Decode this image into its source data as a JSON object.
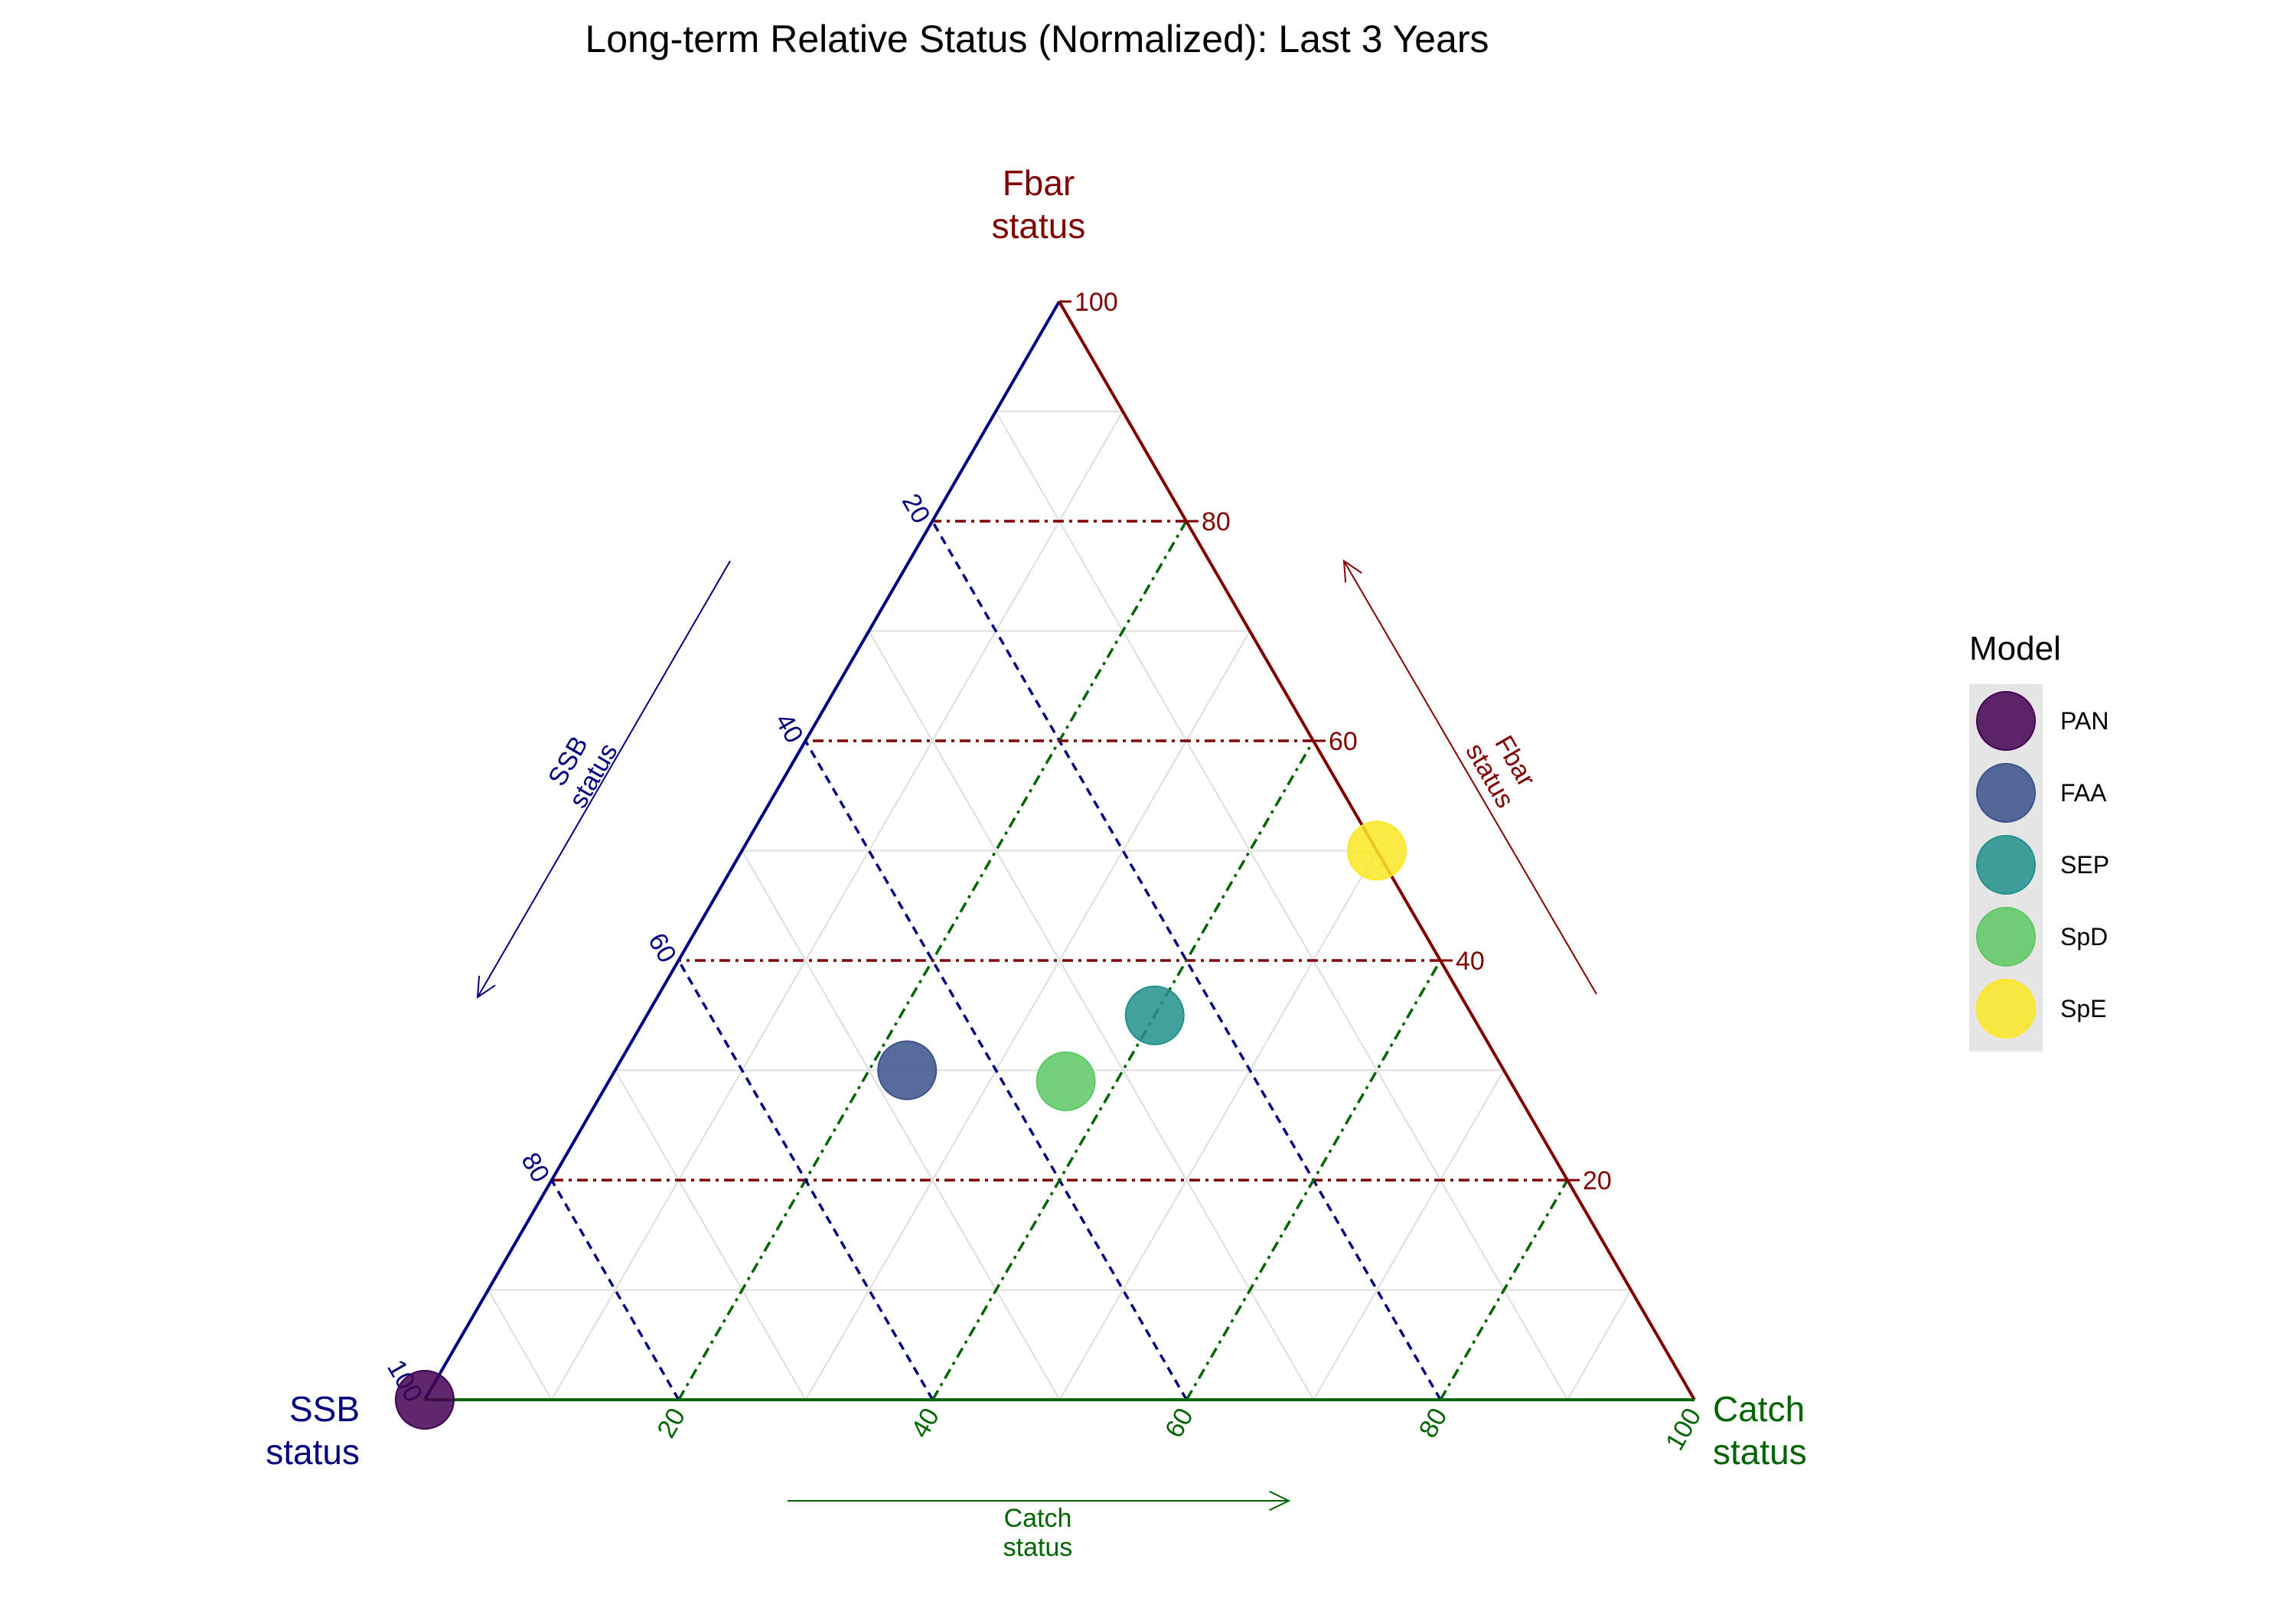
{
  "chart_data": {
    "type": "scatter",
    "subtype": "ternary",
    "title": "Long-term Relative Status (Normalized): Last 3 Years",
    "axes": {
      "ssb": {
        "label": [
          "SSB",
          "status"
        ],
        "color": "#000080"
      },
      "fbar": {
        "label": [
          "Fbar",
          "status"
        ],
        "color": "#800000"
      },
      "catch": {
        "label": [
          "Catch",
          "status"
        ],
        "color": "#006400"
      }
    },
    "ticks": [
      "20",
      "40",
      "60",
      "80",
      "100"
    ],
    "tick_values": [
      20,
      40,
      60,
      80,
      100
    ],
    "range": [
      0,
      100
    ],
    "grid": true,
    "legend": {
      "title": "Model",
      "position": "right",
      "entries": [
        {
          "name": "PAN",
          "color": "#440154"
        },
        {
          "name": "FAA",
          "color": "#3B528B"
        },
        {
          "name": "SEP",
          "color": "#21908C"
        },
        {
          "name": "SpD",
          "color": "#5DC863"
        },
        {
          "name": "SpE",
          "color": "#FDE725"
        }
      ]
    },
    "points": [
      {
        "model": "PAN",
        "ssb": 100,
        "catch": 0,
        "fbar": 0
      },
      {
        "model": "FAA",
        "ssb": 47,
        "catch": 23,
        "fbar": 30
      },
      {
        "model": "SEP",
        "ssb": 25,
        "catch": 40,
        "fbar": 35
      },
      {
        "model": "SpD",
        "ssb": 35,
        "catch": 36,
        "fbar": 29
      },
      {
        "model": "SpE",
        "ssb": 0,
        "catch": 50,
        "fbar": 50
      }
    ]
  }
}
